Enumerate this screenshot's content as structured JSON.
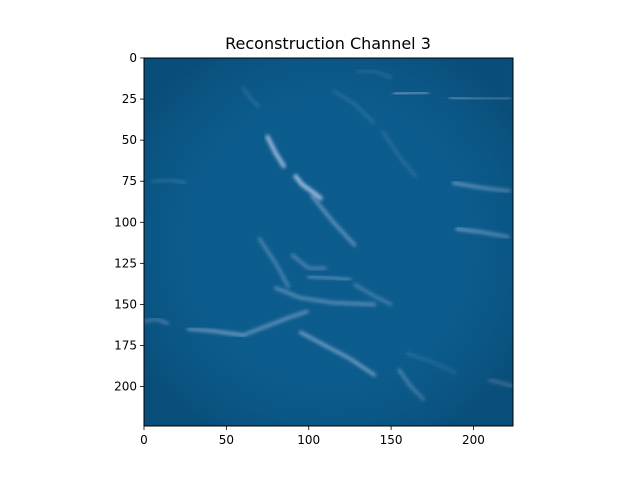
{
  "title": "Reconstruction Channel 3",
  "colors": {
    "background": "#0b5b8c",
    "streak": "#c8d4f4",
    "axis": "#000000"
  },
  "chart_data": {
    "type": "heatmap",
    "title": "Reconstruction Channel 3",
    "xlabel": "",
    "ylabel": "",
    "xlim": [
      0,
      224
    ],
    "ylim": [
      224,
      0
    ],
    "x_ticks": [
      0,
      50,
      100,
      150,
      200
    ],
    "y_ticks": [
      0,
      25,
      50,
      75,
      100,
      125,
      150,
      175,
      200
    ],
    "grid": false,
    "legend": "none"
  }
}
